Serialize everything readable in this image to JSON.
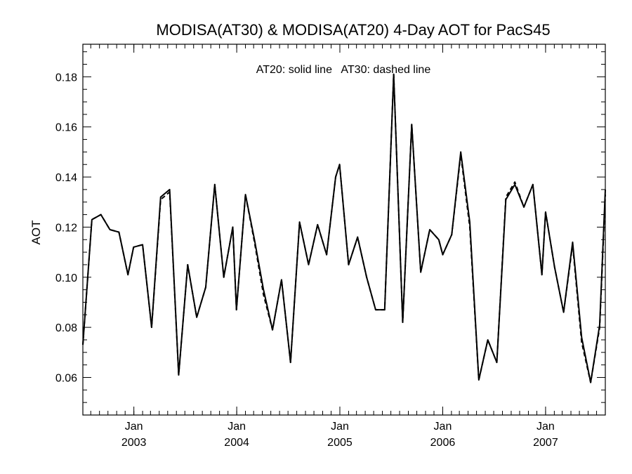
{
  "chart_data": {
    "type": "line",
    "title": "MODISA(AT30) & MODISA(AT20) 4-Day AOT for PacS45",
    "annotation": "AT20: solid line   AT30: dashed line",
    "ylabel": "AOT",
    "xlabel": "",
    "xlim": [
      "2002-07-04",
      "2007-08-01"
    ],
    "ylim": [
      0.045,
      0.193
    ],
    "y_ticks": [
      "0.06",
      "0.08",
      "0.10",
      "0.12",
      "0.14",
      "0.16",
      "0.18"
    ],
    "y_tick_values": [
      0.06,
      0.08,
      0.1,
      0.12,
      0.14,
      0.16,
      0.18
    ],
    "x_ticks": [
      {
        "month": "Jan",
        "year": "2003",
        "date": "2003-01-01"
      },
      {
        "month": "Jan",
        "year": "2004",
        "date": "2004-01-01"
      },
      {
        "month": "Jan",
        "year": "2005",
        "date": "2005-01-01"
      },
      {
        "month": "Jan",
        "year": "2006",
        "date": "2006-01-01"
      },
      {
        "month": "Jan",
        "year": "2007",
        "date": "2007-01-01"
      }
    ],
    "grid": false,
    "series": [
      {
        "name": "AT20",
        "style": "solid",
        "color": "#000000",
        "points": [
          [
            "2002-07-04",
            0.073
          ],
          [
            "2002-08-05",
            0.123
          ],
          [
            "2002-09-06",
            0.125
          ],
          [
            "2002-10-08",
            0.119
          ],
          [
            "2002-11-09",
            0.118
          ],
          [
            "2002-12-11",
            0.101
          ],
          [
            "2002-12-31",
            0.112
          ],
          [
            "2003-02-01",
            0.113
          ],
          [
            "2003-03-05",
            0.08
          ],
          [
            "2003-04-06",
            0.132
          ],
          [
            "2003-05-08",
            0.135
          ],
          [
            "2003-06-09",
            0.061
          ],
          [
            "2003-07-11",
            0.105
          ],
          [
            "2003-08-12",
            0.084
          ],
          [
            "2003-09-13",
            0.096
          ],
          [
            "2003-10-15",
            0.137
          ],
          [
            "2003-11-16",
            0.1
          ],
          [
            "2003-12-18",
            0.12
          ],
          [
            "2003-12-31",
            0.087
          ],
          [
            "2004-02-01",
            0.133
          ],
          [
            "2004-03-04",
            0.115
          ],
          [
            "2004-04-05",
            0.095
          ],
          [
            "2004-05-07",
            0.079
          ],
          [
            "2004-06-08",
            0.099
          ],
          [
            "2004-07-10",
            0.066
          ],
          [
            "2004-08-11",
            0.122
          ],
          [
            "2004-09-12",
            0.105
          ],
          [
            "2004-10-14",
            0.121
          ],
          [
            "2004-11-15",
            0.109
          ],
          [
            "2004-12-17",
            0.14
          ],
          [
            "2004-12-31",
            0.145
          ],
          [
            "2005-02-01",
            0.105
          ],
          [
            "2005-03-05",
            0.116
          ],
          [
            "2005-04-06",
            0.1
          ],
          [
            "2005-05-08",
            0.087
          ],
          [
            "2005-06-09",
            0.087
          ],
          [
            "2005-07-11",
            0.181
          ],
          [
            "2005-08-12",
            0.082
          ],
          [
            "2005-09-13",
            0.161
          ],
          [
            "2005-10-15",
            0.102
          ],
          [
            "2005-11-16",
            0.119
          ],
          [
            "2005-12-18",
            0.115
          ],
          [
            "2006-01-01",
            0.109
          ],
          [
            "2006-02-02",
            0.117
          ],
          [
            "2006-03-06",
            0.15
          ],
          [
            "2006-04-07",
            0.122
          ],
          [
            "2006-05-09",
            0.059
          ],
          [
            "2006-06-10",
            0.075
          ],
          [
            "2006-07-12",
            0.066
          ],
          [
            "2006-08-13",
            0.131
          ],
          [
            "2006-09-14",
            0.137
          ],
          [
            "2006-10-16",
            0.128
          ],
          [
            "2006-11-17",
            0.137
          ],
          [
            "2006-12-19",
            0.101
          ],
          [
            "2007-01-01",
            0.126
          ],
          [
            "2007-02-02",
            0.104
          ],
          [
            "2007-03-06",
            0.086
          ],
          [
            "2007-04-07",
            0.114
          ],
          [
            "2007-05-09",
            0.076
          ],
          [
            "2007-06-10",
            0.058
          ],
          [
            "2007-07-12",
            0.081
          ],
          [
            "2007-08-01",
            0.135
          ]
        ]
      },
      {
        "name": "AT30",
        "style": "dashed",
        "color": "#000000",
        "points": [
          [
            "2002-07-04",
            0.073
          ],
          [
            "2002-08-05",
            0.123
          ],
          [
            "2002-09-06",
            0.125
          ],
          [
            "2002-10-08",
            0.119
          ],
          [
            "2002-11-09",
            0.118
          ],
          [
            "2002-12-11",
            0.101
          ],
          [
            "2002-12-31",
            0.112
          ],
          [
            "2003-02-01",
            0.113
          ],
          [
            "2003-03-05",
            0.08
          ],
          [
            "2003-04-06",
            0.131
          ],
          [
            "2003-05-08",
            0.134
          ],
          [
            "2003-06-09",
            0.061
          ],
          [
            "2003-07-11",
            0.105
          ],
          [
            "2003-08-12",
            0.084
          ],
          [
            "2003-09-13",
            0.096
          ],
          [
            "2003-10-15",
            0.137
          ],
          [
            "2003-11-16",
            0.1
          ],
          [
            "2003-12-18",
            0.12
          ],
          [
            "2003-12-31",
            0.087
          ],
          [
            "2004-02-01",
            0.133
          ],
          [
            "2004-03-04",
            0.114
          ],
          [
            "2004-04-05",
            0.093
          ],
          [
            "2004-05-07",
            0.079
          ],
          [
            "2004-06-08",
            0.099
          ],
          [
            "2004-07-10",
            0.066
          ],
          [
            "2004-08-11",
            0.122
          ],
          [
            "2004-09-12",
            0.105
          ],
          [
            "2004-10-14",
            0.121
          ],
          [
            "2004-11-15",
            0.109
          ],
          [
            "2004-12-17",
            0.14
          ],
          [
            "2004-12-31",
            0.145
          ],
          [
            "2005-02-01",
            0.105
          ],
          [
            "2005-03-05",
            0.116
          ],
          [
            "2005-04-06",
            0.1
          ],
          [
            "2005-05-08",
            0.087
          ],
          [
            "2005-06-09",
            0.087
          ],
          [
            "2005-07-11",
            0.181
          ],
          [
            "2005-08-12",
            0.082
          ],
          [
            "2005-09-13",
            0.161
          ],
          [
            "2005-10-15",
            0.102
          ],
          [
            "2005-11-16",
            0.119
          ],
          [
            "2005-12-18",
            0.115
          ],
          [
            "2006-01-01",
            0.109
          ],
          [
            "2006-02-02",
            0.117
          ],
          [
            "2006-03-06",
            0.149
          ],
          [
            "2006-04-07",
            0.12
          ],
          [
            "2006-05-09",
            0.059
          ],
          [
            "2006-06-10",
            0.075
          ],
          [
            "2006-07-12",
            0.066
          ],
          [
            "2006-08-13",
            0.132
          ],
          [
            "2006-09-14",
            0.138
          ],
          [
            "2006-10-16",
            0.128
          ],
          [
            "2006-11-17",
            0.137
          ],
          [
            "2006-12-19",
            0.101
          ],
          [
            "2007-01-01",
            0.126
          ],
          [
            "2007-02-02",
            0.104
          ],
          [
            "2007-03-06",
            0.086
          ],
          [
            "2007-04-07",
            0.113
          ],
          [
            "2007-05-09",
            0.074
          ],
          [
            "2007-06-10",
            0.058
          ],
          [
            "2007-07-12",
            0.08
          ],
          [
            "2007-08-01",
            0.133
          ]
        ]
      }
    ]
  }
}
